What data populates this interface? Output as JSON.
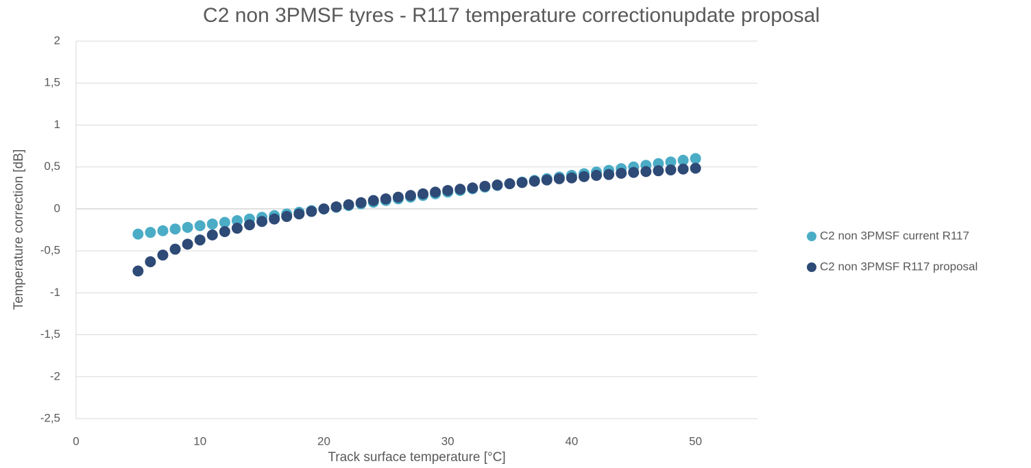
{
  "chart_data": {
    "type": "scatter",
    "title": "C2 non 3PMSF tyres - R117 temperature correctionupdate proposal",
    "x_label": "Track surface temperature [°C]",
    "y_label": "Temperature correction [dB]",
    "x": [
      5,
      6,
      7,
      8,
      9,
      10,
      11,
      12,
      13,
      14,
      15,
      16,
      17,
      18,
      19,
      20,
      21,
      22,
      23,
      24,
      25,
      26,
      27,
      28,
      29,
      30,
      31,
      32,
      33,
      34,
      35,
      36,
      37,
      38,
      39,
      40,
      41,
      42,
      43,
      44,
      45,
      46,
      47,
      48,
      49,
      50
    ],
    "series": [
      {
        "name": "C2 non 3PMSF current R117",
        "color": "#4bacc6",
        "values": [
          -0.3,
          -0.28,
          -0.26,
          -0.24,
          -0.22,
          -0.2,
          -0.18,
          -0.16,
          -0.14,
          -0.12,
          -0.1,
          -0.08,
          -0.06,
          -0.04,
          -0.02,
          0,
          0.02,
          0.04,
          0.06,
          0.08,
          0.1,
          0.12,
          0.14,
          0.16,
          0.18,
          0.2,
          0.22,
          0.24,
          0.26,
          0.28,
          0.3,
          0.32,
          0.34,
          0.36,
          0.38,
          0.4,
          0.42,
          0.44,
          0.46,
          0.48,
          0.5,
          0.52,
          0.54,
          0.56,
          0.58,
          0.6
        ]
      },
      {
        "name": "C2 non 3PMSF R117 proposal",
        "color": "#2e4a76",
        "values": [
          -0.74,
          -0.63,
          -0.55,
          -0.48,
          -0.42,
          -0.37,
          -0.31,
          -0.27,
          -0.23,
          -0.19,
          -0.15,
          -0.12,
          -0.09,
          -0.06,
          -0.03,
          0,
          0.025,
          0.05,
          0.075,
          0.1,
          0.12,
          0.14,
          0.16,
          0.18,
          0.2,
          0.22,
          0.235,
          0.25,
          0.27,
          0.285,
          0.3,
          0.315,
          0.33,
          0.345,
          0.36,
          0.37,
          0.385,
          0.4,
          0.41,
          0.425,
          0.435,
          0.445,
          0.455,
          0.465,
          0.475,
          0.485
        ]
      }
    ],
    "xlim": [
      0,
      55
    ],
    "xticks": [
      0,
      10,
      20,
      30,
      40,
      50
    ],
    "ylim": [
      -2.5,
      2
    ],
    "yticks": [
      {
        "value": -2.5,
        "label": "-2,5"
      },
      -2,
      {
        "value": -1.5,
        "label": "-1,5"
      },
      -1,
      {
        "value": -0.5,
        "label": "-0,5"
      },
      0,
      {
        "value": 0.5,
        "label": "0,5"
      },
      1,
      {
        "value": 1.5,
        "label": "1,5"
      },
      2
    ],
    "grid": true,
    "legend": "right"
  }
}
